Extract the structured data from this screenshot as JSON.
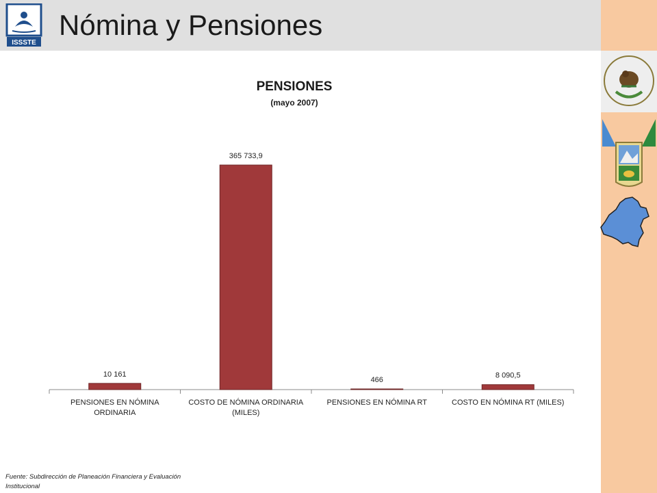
{
  "header": {
    "title": "Nómina y Pensiones",
    "logo_text": "ISSSTE"
  },
  "sidebar": {
    "seal_icon": "mexico-coat-of-arms-icon",
    "shield_icon": "state-coat-of-arms-icon",
    "map_icon": "state-map-icon",
    "map_color": "#5b8fd6"
  },
  "chart_data": {
    "type": "bar",
    "title": "PENSIONES",
    "subtitle": "(mayo 2007)",
    "categories": [
      [
        "PENSIONES EN NÓMINA",
        "ORDINARIA"
      ],
      [
        "COSTO DE NÓMINA ORDINARIA",
        "(MILES)"
      ],
      [
        "PENSIONES EN NÓMINA RT"
      ],
      [
        "COSTO EN NÓMINA RT (MILES)"
      ]
    ],
    "values": [
      10161,
      365733.9,
      466,
      8090.5
    ],
    "data_labels": [
      "10 161",
      "365 733,9",
      "466",
      "8 090,5"
    ],
    "bar_color": "#a0393a",
    "ylim": [
      0,
      365733.9
    ]
  },
  "footer": {
    "source": "Fuente: Subdirección de Planeación Financiera y Evaluación Institucional"
  }
}
